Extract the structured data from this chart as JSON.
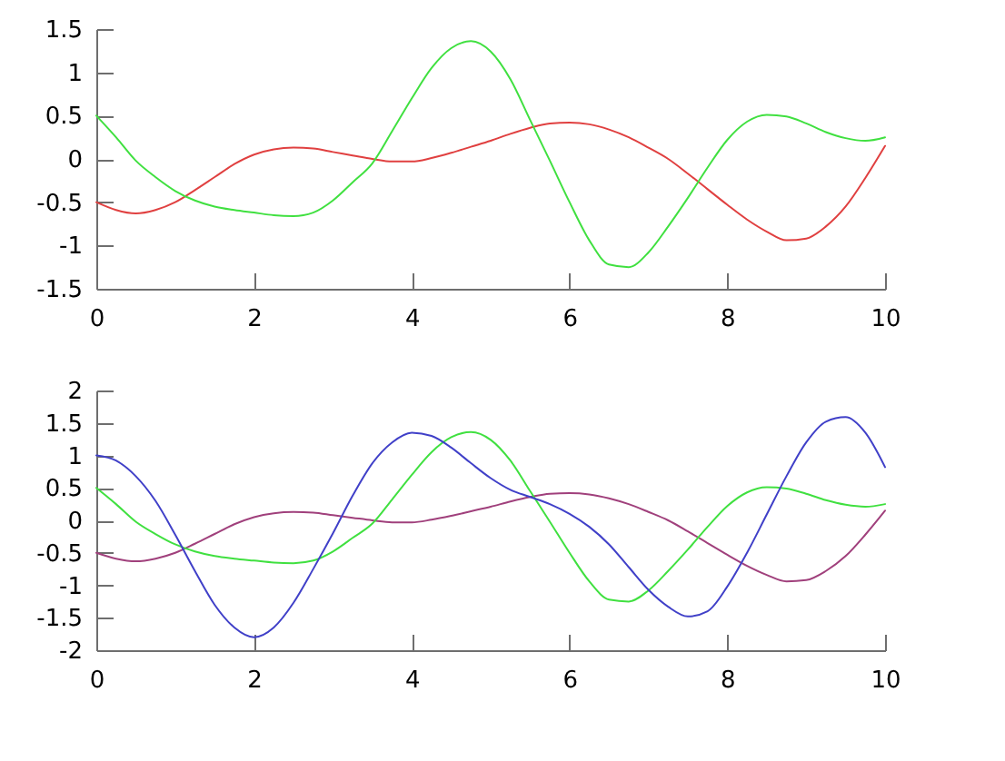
{
  "chart_data": [
    {
      "type": "line",
      "x": [
        0,
        0.25,
        0.5,
        0.75,
        1,
        1.25,
        1.5,
        1.75,
        2,
        2.25,
        2.5,
        2.75,
        3,
        3.25,
        3.5,
        3.75,
        4,
        4.25,
        4.5,
        4.75,
        5,
        5.25,
        5.5,
        5.75,
        6,
        6.25,
        6.5,
        6.75,
        7,
        7.25,
        7.5,
        7.75,
        8,
        8.25,
        8.5,
        8.75,
        9,
        9.25,
        9.5,
        9.75,
        10
      ],
      "series": [
        {
          "color": "#e04040",
          "values": [
            -0.5,
            -0.59,
            -0.63,
            -0.59,
            -0.5,
            -0.36,
            -0.21,
            -0.06,
            0.05,
            0.11,
            0.13,
            0.12,
            0.08,
            0.04,
            0.0,
            -0.03,
            -0.03,
            0.01,
            0.07,
            0.14,
            0.21,
            0.29,
            0.36,
            0.41,
            0.42,
            0.4,
            0.34,
            0.25,
            0.13,
            0.0,
            -0.17,
            -0.35,
            -0.53,
            -0.7,
            -0.84,
            -0.94,
            -0.92,
            -0.78,
            -0.55,
            -0.22,
            0.15
          ]
        },
        {
          "color": "#40e040",
          "values": [
            0.5,
            0.25,
            -0.02,
            -0.21,
            -0.37,
            -0.48,
            -0.55,
            -0.59,
            -0.62,
            -0.65,
            -0.66,
            -0.62,
            -0.48,
            -0.27,
            -0.05,
            0.32,
            0.7,
            1.05,
            1.28,
            1.36,
            1.24,
            0.92,
            0.45,
            -0.02,
            -0.5,
            -0.94,
            -1.22,
            -1.25,
            -1.08,
            -0.78,
            -0.45,
            -0.1,
            0.22,
            0.43,
            0.51,
            0.49,
            0.41,
            0.31,
            0.24,
            0.21,
            0.25
          ]
        }
      ],
      "xlim": [
        0,
        10
      ],
      "ylim": [
        -1.5,
        1.5
      ],
      "xticks": [
        0,
        2,
        4,
        6,
        8,
        10
      ],
      "yticks": [
        -1.5,
        -1,
        -0.5,
        0,
        0.5,
        1,
        1.5
      ]
    },
    {
      "type": "line",
      "x": [
        0,
        0.25,
        0.5,
        0.75,
        1,
        1.25,
        1.5,
        1.75,
        2,
        2.25,
        2.5,
        2.75,
        3,
        3.25,
        3.5,
        3.75,
        4,
        4.25,
        4.5,
        4.75,
        5,
        5.25,
        5.5,
        5.75,
        6,
        6.25,
        6.5,
        6.75,
        7,
        7.25,
        7.5,
        7.75,
        8,
        8.25,
        8.5,
        8.75,
        9,
        9.25,
        9.5,
        9.75,
        10
      ],
      "series": [
        {
          "color": "#a0407c",
          "values": [
            -0.5,
            -0.59,
            -0.63,
            -0.59,
            -0.5,
            -0.36,
            -0.21,
            -0.06,
            0.05,
            0.11,
            0.13,
            0.12,
            0.08,
            0.04,
            0.0,
            -0.03,
            -0.03,
            0.01,
            0.07,
            0.14,
            0.21,
            0.29,
            0.36,
            0.41,
            0.42,
            0.4,
            0.34,
            0.25,
            0.13,
            0.0,
            -0.17,
            -0.35,
            -0.53,
            -0.7,
            -0.84,
            -0.94,
            -0.92,
            -0.78,
            -0.55,
            -0.22,
            0.15
          ]
        },
        {
          "color": "#40e040",
          "values": [
            0.5,
            0.25,
            -0.02,
            -0.21,
            -0.37,
            -0.48,
            -0.55,
            -0.59,
            -0.62,
            -0.65,
            -0.66,
            -0.62,
            -0.48,
            -0.27,
            -0.05,
            0.32,
            0.7,
            1.05,
            1.28,
            1.36,
            1.24,
            0.92,
            0.45,
            -0.02,
            -0.5,
            -0.94,
            -1.22,
            -1.25,
            -1.08,
            -0.78,
            -0.45,
            -0.1,
            0.22,
            0.43,
            0.51,
            0.49,
            0.41,
            0.31,
            0.24,
            0.21,
            0.25
          ]
        },
        {
          "color": "#4040c8",
          "values": [
            1.0,
            0.92,
            0.68,
            0.3,
            -0.22,
            -0.78,
            -1.3,
            -1.65,
            -1.8,
            -1.65,
            -1.27,
            -0.75,
            -0.2,
            0.38,
            0.88,
            1.2,
            1.35,
            1.3,
            1.12,
            0.88,
            0.65,
            0.47,
            0.36,
            0.25,
            0.1,
            -0.1,
            -0.37,
            -0.72,
            -1.07,
            -1.33,
            -1.48,
            -1.4,
            -1.02,
            -0.5,
            0.09,
            0.68,
            1.2,
            1.52,
            1.59,
            1.35,
            0.82
          ]
        }
      ],
      "xlim": [
        0,
        10
      ],
      "ylim": [
        -2,
        2
      ],
      "xticks": [
        0,
        2,
        4,
        6,
        8,
        10
      ],
      "yticks": [
        -2,
        -1.5,
        -1,
        -0.5,
        0,
        0.5,
        1,
        1.5,
        2
      ]
    }
  ]
}
